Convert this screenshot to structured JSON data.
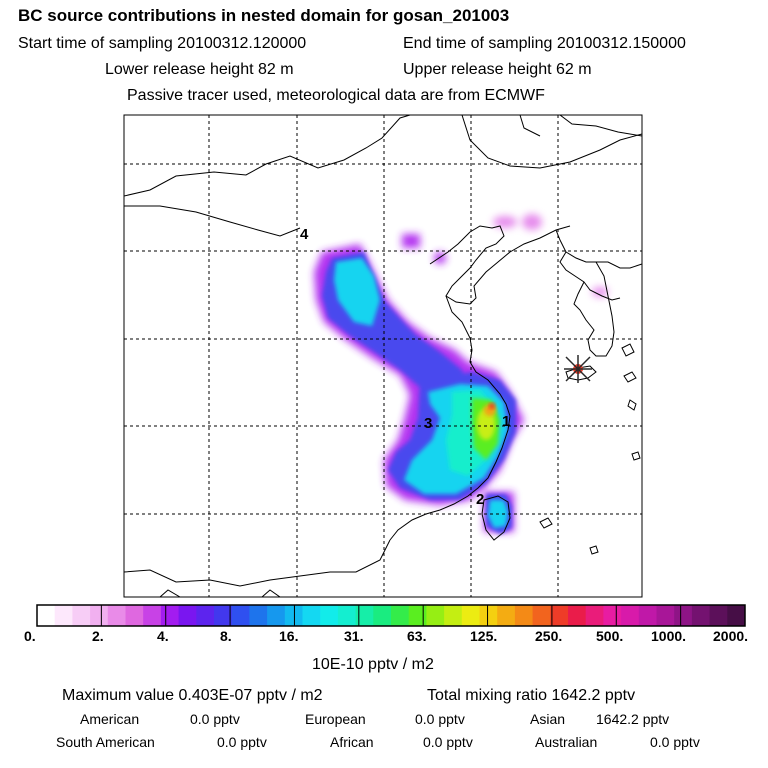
{
  "header": {
    "title": "BC  source contributions in nested domain for gosan_201003",
    "start_time": "Start time of sampling 20100312.120000",
    "end_time": "End time of sampling 20100312.150000",
    "lower_release": "Lower release height   82 m",
    "upper_release": "Upper release height   62 m",
    "note": "Passive tracer used, meteorological data are from ECMWF"
  },
  "map": {
    "labels": [
      "4",
      "3",
      "1",
      "2"
    ]
  },
  "colorbar": {
    "ticks": [
      "0.",
      "2.",
      "4.",
      "8.",
      "16.",
      "31.",
      "63.",
      "125.",
      "250.",
      "500.",
      "1000.",
      "2000."
    ],
    "colors": [
      "#ffffff",
      "#fde8fc",
      "#f7cdf6",
      "#f1b0f0",
      "#e98be8",
      "#df68e0",
      "#c842e6",
      "#a31cf0",
      "#7a16f0",
      "#5d24ee",
      "#4238ee",
      "#2f50f0",
      "#1e74ec",
      "#1698ee",
      "#12baf0",
      "#14d8f2",
      "#12ecea",
      "#14eed0",
      "#16eea8",
      "#1aec80",
      "#34ec4a",
      "#5aee20",
      "#96ee14",
      "#c4ee12",
      "#ecec12",
      "#f4d010",
      "#f4ac12",
      "#f48a16",
      "#f2641e",
      "#ee3c28",
      "#ea1c4a",
      "#ea1c7a",
      "#e81ca2",
      "#d81aaa",
      "#c018a8",
      "#a81698",
      "#8e1486",
      "#741270",
      "#5c105a",
      "#460e46"
    ],
    "units": "10E-10 pptv / m2"
  },
  "stats": {
    "max_value": "Maximum value  0.403E-07 pptv / m2",
    "total": "Total mixing ratio      1642.2 pptv",
    "rows": [
      [
        "American",
        "0.0 pptv",
        "European",
        "0.0 pptv",
        "Asian",
        "1642.2 pptv"
      ],
      [
        "South American",
        "0.0 pptv",
        "African",
        "0.0 pptv",
        "Australian",
        "0.0 pptv"
      ]
    ]
  }
}
